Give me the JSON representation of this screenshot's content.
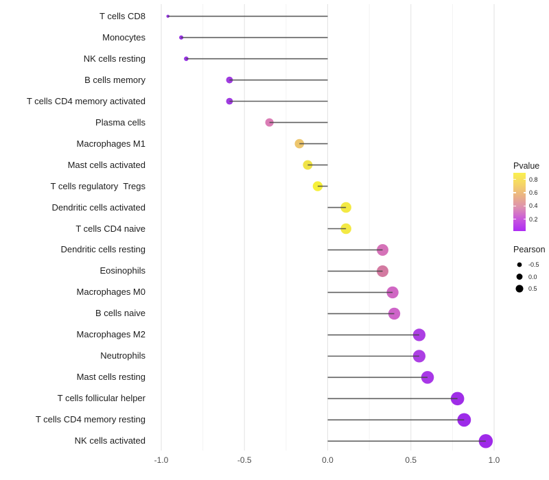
{
  "chart_data": {
    "type": "scatter",
    "variant": "lollipop",
    "orientation": "horizontal",
    "title": "",
    "xlabel": "",
    "ylabel": "",
    "xlim": [
      -1.1,
      1.1
    ],
    "x_tick_labels": [
      "-1.0",
      "-0.5",
      "0.0",
      "0.5",
      "1.0"
    ],
    "x_tick_values": [
      -1.0,
      -0.5,
      0.0,
      0.5,
      1.0
    ],
    "grid": "vertical-only",
    "categories": [
      "T cells CD8",
      "Monocytes",
      "NK cells resting",
      "B cells memory",
      "T cells CD4 memory activated",
      "Plasma cells",
      "Macrophages M1",
      "Mast cells activated",
      "T cells regulatory  Tregs",
      "Dendritic cells activated",
      "T cells CD4 naive",
      "Dendritic cells resting",
      "Eosinophils",
      "Macrophages M0",
      "B cells naive",
      "Macrophages M2",
      "Neutrophils",
      "Mast cells resting",
      "T cells follicular helper",
      "T cells CD4 memory resting",
      "NK cells activated"
    ],
    "series": [
      {
        "name": "Pearson",
        "values": [
          -0.96,
          -0.88,
          -0.85,
          -0.59,
          -0.59,
          -0.35,
          -0.17,
          -0.12,
          -0.06,
          0.11,
          0.11,
          0.33,
          0.33,
          0.39,
          0.4,
          0.55,
          0.55,
          0.6,
          0.78,
          0.82,
          0.95
        ]
      }
    ],
    "point_colors": [
      "#8f26e0",
      "#9128e2",
      "#9128e2",
      "#9a30de",
      "#9a30de",
      "#d976b2",
      "#ecc366",
      "#efe13c",
      "#f6ef2e",
      "#f2e83a",
      "#f2e83a",
      "#d36ab4",
      "#d1739c",
      "#cd5fc0",
      "#cb5cc6",
      "#a835e2",
      "#a835e2",
      "#a32ce6",
      "#9a22e6",
      "#9820e8",
      "#9a1fe8"
    ],
    "size_encoding": "Pearson",
    "color_encoding": "Pvalue",
    "legend_position": "right"
  },
  "legends": {
    "pvalue": {
      "title": "Pvalue",
      "tick_labels": [
        "0.8",
        "0.6",
        "0.4",
        "0.2"
      ],
      "tick_values": [
        0.8,
        0.6,
        0.4,
        0.2
      ],
      "gradient_top_to_bottom": [
        "#faf04f",
        "#f5d467",
        "#eab286",
        "#dd8fb2",
        "#c857dd",
        "#ae2cf4"
      ]
    },
    "pearson": {
      "title": "Pearson",
      "entries": [
        {
          "label": "-0.5",
          "value": -0.5
        },
        {
          "label": "0.0",
          "value": 0.0
        },
        {
          "label": "0.5",
          "value": 0.5
        }
      ],
      "dot_color": "#000000"
    }
  },
  "colors": {
    "background": "#ffffff",
    "stem": "#434343",
    "grid_major": "#e4e4e4",
    "grid_minor": "#f2f2f2",
    "axis_text": "#4d4d4d",
    "category_text": "#1c1c1c"
  }
}
